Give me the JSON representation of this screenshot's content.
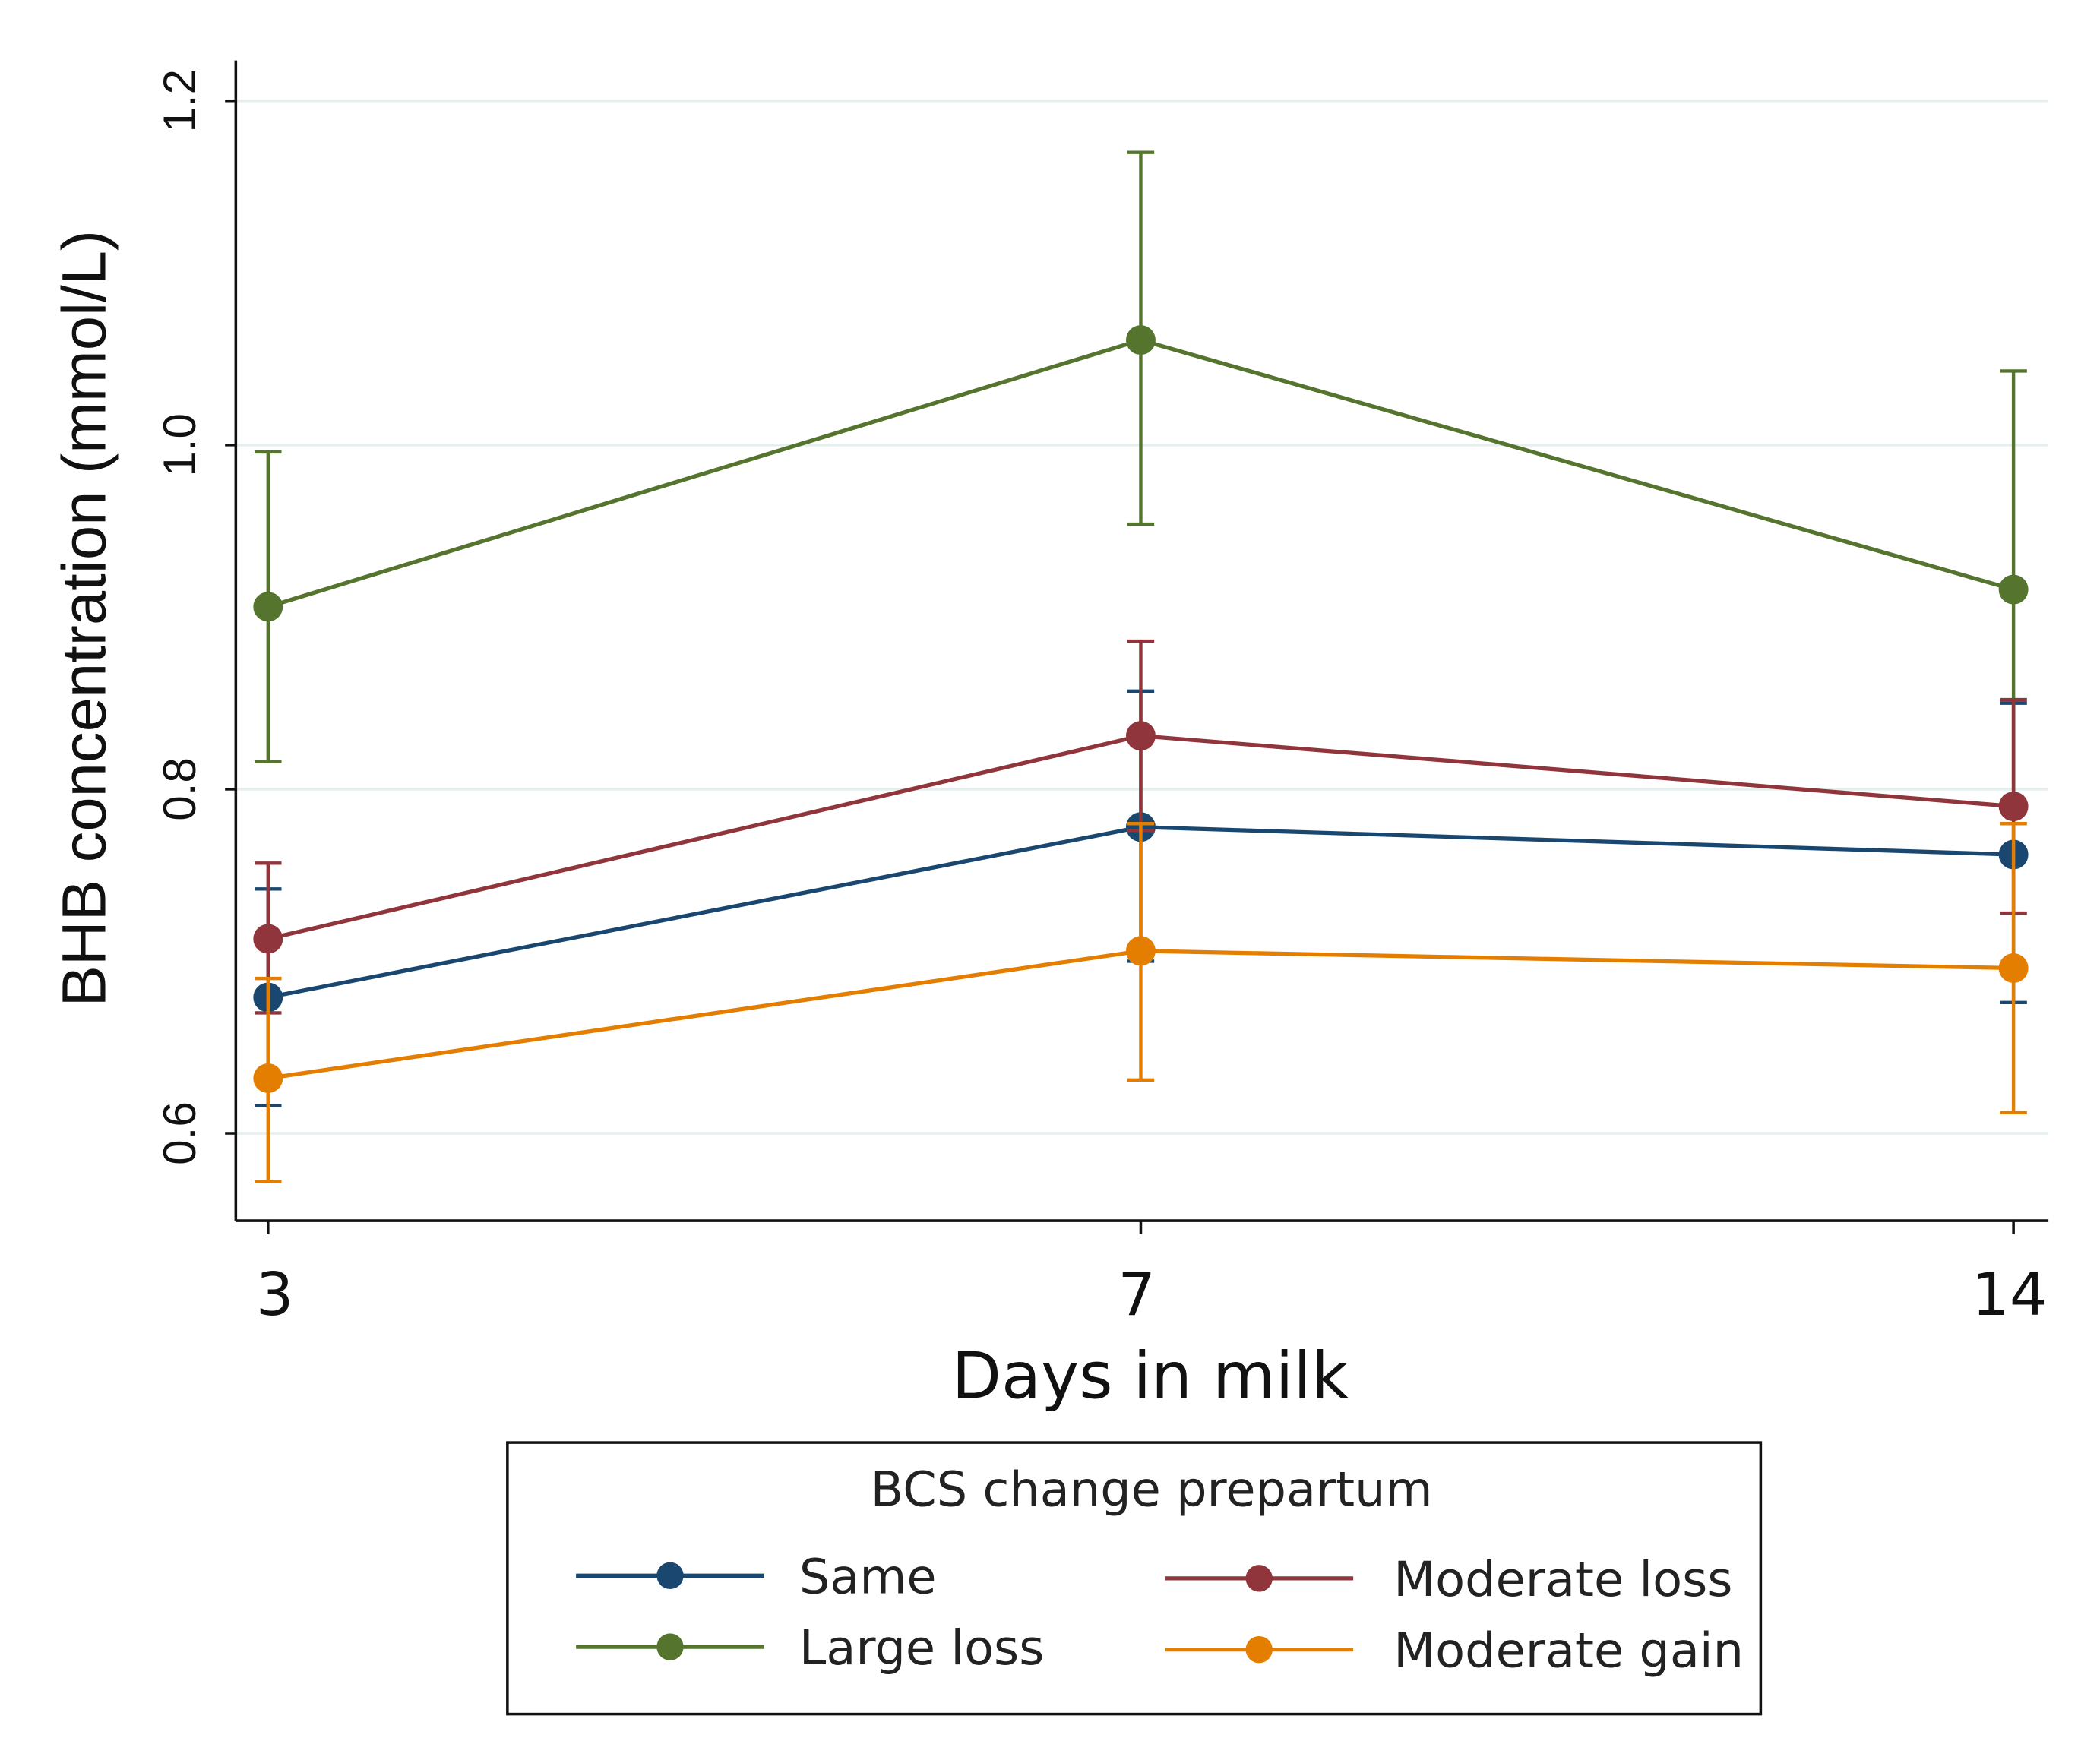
{
  "chart_data": {
    "type": "line",
    "title": "",
    "xlabel": "Days in milk",
    "ylabel": "BHB concentration (mmol/L)",
    "x": [
      3,
      7,
      14
    ],
    "x_tick_labels": [
      "3",
      "7",
      "14"
    ],
    "y_ticks": [
      0.6,
      0.8,
      1.0,
      1.2
    ],
    "y_tick_labels": [
      "0.6",
      "0.8",
      "1.0",
      "1.2"
    ],
    "ylim": [
      0.55,
      1.225
    ],
    "grid": true,
    "legend": {
      "title": "BCS change prepartum",
      "placement": "bottom",
      "columns": 2
    },
    "series": [
      {
        "name": "Same",
        "color": "#1a476f",
        "values": [
          0.679,
          0.778,
          0.762
        ],
        "ci_low": [
          0.616,
          0.7,
          0.676
        ],
        "ci_high": [
          0.742,
          0.857,
          0.85
        ]
      },
      {
        "name": "Large loss",
        "color": "#55752f",
        "values": [
          0.906,
          1.061,
          0.916
        ],
        "ci_low": [
          0.816,
          0.954,
          0.789
        ],
        "ci_high": [
          0.996,
          1.17,
          1.043
        ]
      },
      {
        "name": "Moderate loss",
        "color": "#90353b",
        "values": [
          0.713,
          0.831,
          0.79
        ],
        "ci_low": [
          0.67,
          0.776,
          0.728
        ],
        "ci_high": [
          0.757,
          0.886,
          0.852
        ]
      },
      {
        "name": "Moderate gain",
        "color": "#e37e00",
        "values": [
          0.632,
          0.706,
          0.696
        ],
        "ci_low": [
          0.572,
          0.631,
          0.612
        ],
        "ci_high": [
          0.69,
          0.78,
          0.78
        ]
      }
    ]
  }
}
